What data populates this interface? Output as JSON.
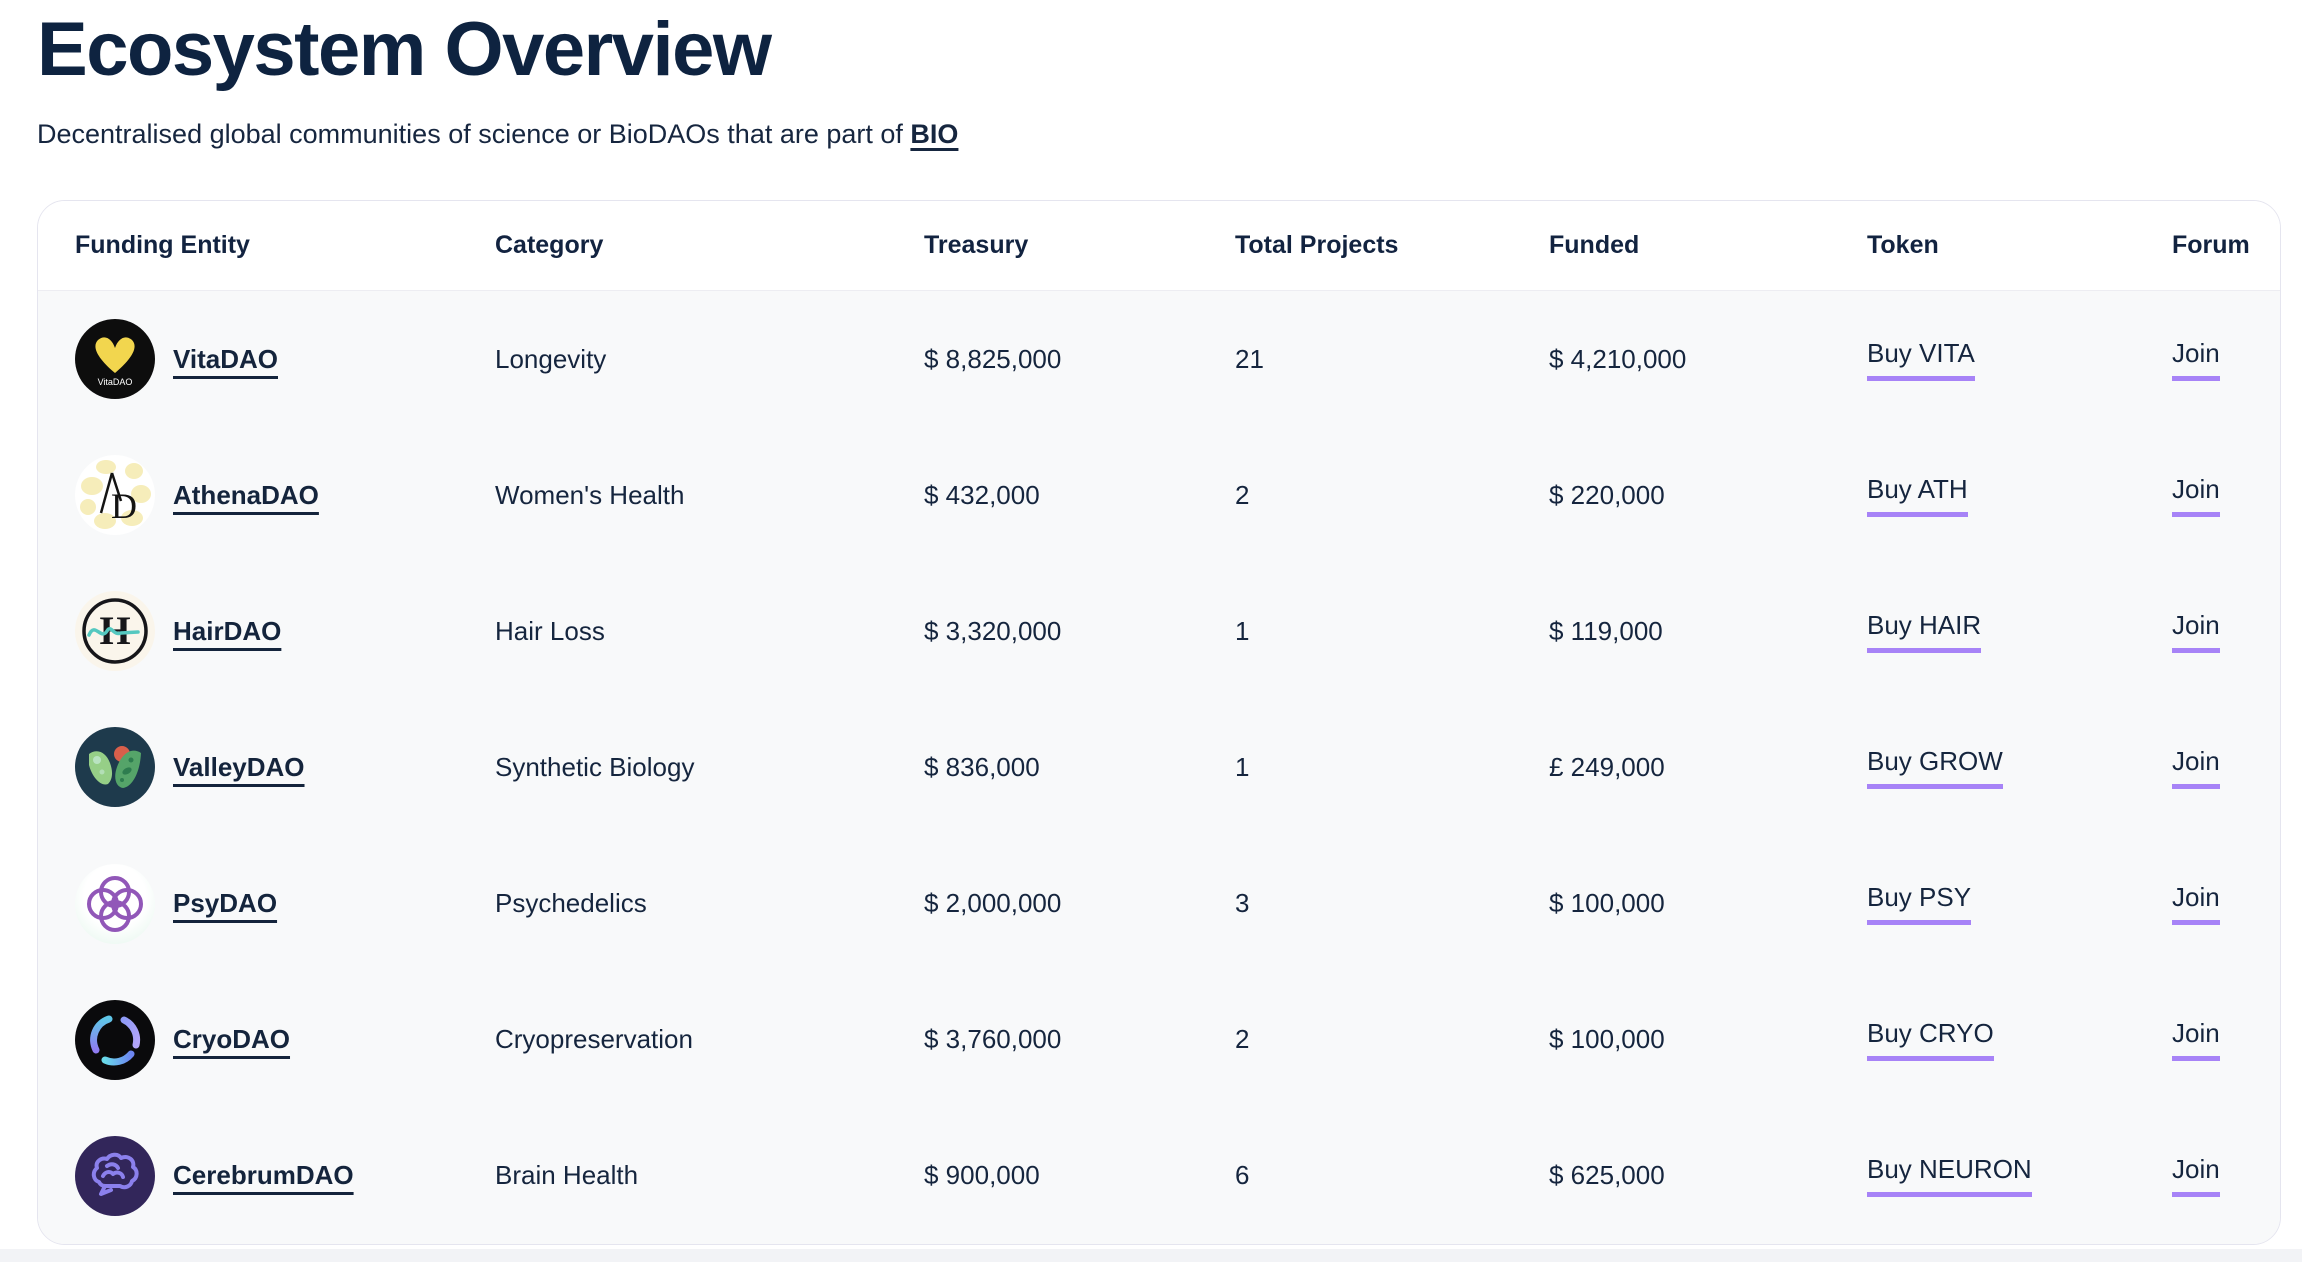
{
  "page": {
    "title": "Ecosystem Overview",
    "subtitle_prefix": "Decentralised global communities of science or BioDAOs that are part of ",
    "subtitle_link": "BIO"
  },
  "colors": {
    "text_navy": "#14243c",
    "accent_underline_purple": "#a783f7",
    "card_body_bg": "#f8f9fa",
    "card_border": "#e5e5ef"
  },
  "table": {
    "columns": [
      "Funding Entity",
      "Category",
      "Treasury",
      "Total Projects",
      "Funded",
      "Token",
      "Forum"
    ],
    "rows": [
      {
        "name": "VitaDAO",
        "icon": "vitadao-logo",
        "category": "Longevity",
        "treasury": "$ 8,825,000",
        "total_projects": "21",
        "funded": "$ 4,210,000",
        "token": "Buy VITA",
        "forum": "Join"
      },
      {
        "name": "AthenaDAO",
        "icon": "athenadao-logo",
        "category": "Women's Health",
        "treasury": "$ 432,000",
        "total_projects": "2",
        "funded": "$ 220,000",
        "token": "Buy ATH",
        "forum": "Join"
      },
      {
        "name": "HairDAO",
        "icon": "hairdao-logo",
        "category": "Hair Loss",
        "treasury": "$ 3,320,000",
        "total_projects": "1",
        "funded": "$ 119,000",
        "token": "Buy HAIR",
        "forum": "Join"
      },
      {
        "name": "ValleyDAO",
        "icon": "valleydao-logo",
        "category": "Synthetic Biology",
        "treasury": "$ 836,000",
        "total_projects": "1",
        "funded": "£ 249,000",
        "token": "Buy GROW",
        "forum": "Join"
      },
      {
        "name": "PsyDAO",
        "icon": "psydao-logo",
        "category": "Psychedelics",
        "treasury": "$ 2,000,000",
        "total_projects": "3",
        "funded": "$ 100,000",
        "token": "Buy PSY",
        "forum": "Join"
      },
      {
        "name": "CryoDAO",
        "icon": "cryodao-logo",
        "category": "Cryopreservation",
        "treasury": "$ 3,760,000",
        "total_projects": "2",
        "funded": "$ 100,000",
        "token": "Buy CRYO",
        "forum": "Join"
      },
      {
        "name": "CerebrumDAO",
        "icon": "cerebrumdao-logo",
        "category": "Brain Health",
        "treasury": "$ 900,000",
        "total_projects": "6",
        "funded": "$ 625,000",
        "token": "Buy NEURON",
        "forum": "Join"
      }
    ]
  }
}
